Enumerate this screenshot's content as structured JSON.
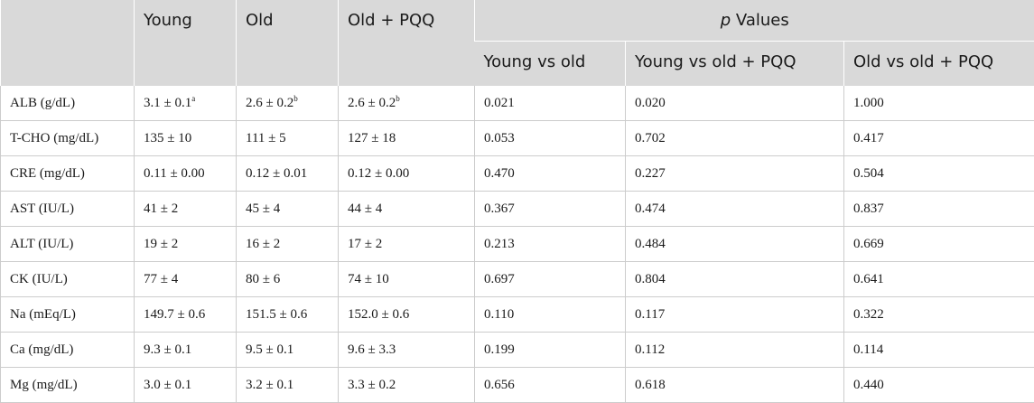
{
  "header": {
    "col_blank": "",
    "young": "Young",
    "old": "Old",
    "old_pqq": "Old + PQQ",
    "p_label_italic": "p",
    "p_label_rest": " Values",
    "young_vs_old": "Young vs old",
    "young_vs_old_pqq": "Young vs old + PQQ",
    "old_vs_old_pqq": "Old vs old + PQQ"
  },
  "rows": [
    {
      "param": "ALB (g/dL)",
      "young": "3.1 ± 0.1",
      "young_sup": "a",
      "old": "2.6 ± 0.2",
      "old_sup": "b",
      "old_pqq": "2.6 ± 0.2",
      "old_pqq_sup": "b",
      "p1": "0.021",
      "p2": "0.020",
      "p3": "1.000"
    },
    {
      "param": "T-CHO (mg/dL)",
      "young": "135 ± 10",
      "young_sup": "",
      "old": "111 ± 5",
      "old_sup": "",
      "old_pqq": "127 ± 18",
      "old_pqq_sup": "",
      "p1": "0.053",
      "p2": "0.702",
      "p3": "0.417"
    },
    {
      "param": "CRE (mg/dL)",
      "young": "0.11 ± 0.00",
      "young_sup": "",
      "old": "0.12 ± 0.01",
      "old_sup": "",
      "old_pqq": "0.12 ± 0.00",
      "old_pqq_sup": "",
      "p1": "0.470",
      "p2": "0.227",
      "p3": "0.504"
    },
    {
      "param": "AST (IU/L)",
      "young": "41 ± 2",
      "young_sup": "",
      "old": "45 ± 4",
      "old_sup": "",
      "old_pqq": "44 ± 4",
      "old_pqq_sup": "",
      "p1": "0.367",
      "p2": "0.474",
      "p3": "0.837"
    },
    {
      "param": "ALT (IU/L)",
      "young": "19 ± 2",
      "young_sup": "",
      "old": "16 ± 2",
      "old_sup": "",
      "old_pqq": "17 ± 2",
      "old_pqq_sup": "",
      "p1": "0.213",
      "p2": "0.484",
      "p3": "0.669"
    },
    {
      "param": "CK (IU/L)",
      "young": "77 ± 4",
      "young_sup": "",
      "old": "80 ± 6",
      "old_sup": "",
      "old_pqq": "74 ± 10",
      "old_pqq_sup": "",
      "p1": "0.697",
      "p2": "0.804",
      "p3": "0.641"
    },
    {
      "param": "Na (mEq/L)",
      "young": "149.7 ± 0.6",
      "young_sup": "",
      "old": "151.5 ± 0.6",
      "old_sup": "",
      "old_pqq": "152.0 ± 0.6",
      "old_pqq_sup": "",
      "p1": "0.110",
      "p2": "0.117",
      "p3": "0.322"
    },
    {
      "param": "Ca (mg/dL)",
      "young": "9.3 ± 0.1",
      "young_sup": "",
      "old": "9.5 ± 0.1",
      "old_sup": "",
      "old_pqq": "9.6 ± 3.3",
      "old_pqq_sup": "",
      "p1": "0.199",
      "p2": "0.112",
      "p3": "0.114"
    },
    {
      "param": "Mg (mg/dL)",
      "young": "3.0 ± 0.1",
      "young_sup": "",
      "old": "3.2 ± 0.1",
      "old_sup": "",
      "old_pqq": "3.3 ± 0.2",
      "old_pqq_sup": "",
      "p1": "0.656",
      "p2": "0.618",
      "p3": "0.440"
    }
  ]
}
